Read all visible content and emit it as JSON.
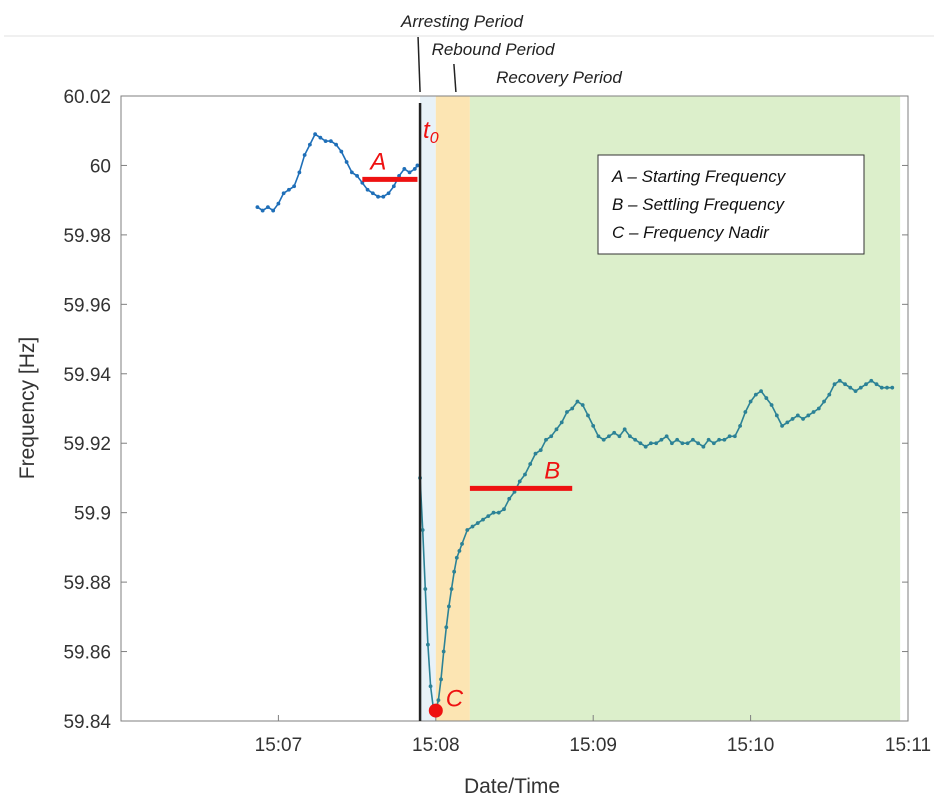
{
  "chart_data": {
    "type": "line",
    "title": "",
    "xlabel": "Date/Time",
    "ylabel": "Frequency [Hz]",
    "ylim": [
      59.84,
      60.02
    ],
    "xlim": [
      "15:06:00",
      "15:11:00"
    ],
    "x_ticks": [
      "15:07",
      "15:08",
      "15:09",
      "15:10",
      "15:11"
    ],
    "y_ticks": [
      "59.84",
      "59.86",
      "59.88",
      "59.9",
      "59.92",
      "59.94",
      "59.96",
      "59.98",
      "60",
      "60.02"
    ],
    "grid": false,
    "periods": [
      {
        "name": "Arresting Period",
        "start": "15:07:54",
        "end": "15:08:00",
        "color": "#e8f2f8"
      },
      {
        "name": "Rebound Period",
        "start": "15:08:00",
        "end": "15:08:13",
        "color": "#fce5b3"
      },
      {
        "name": "Recovery Period",
        "start": "15:08:13",
        "end": "15:10:57",
        "color": "#dcefcb"
      }
    ],
    "event_time": {
      "label": "t",
      "subscript": "0",
      "x": "15:07:54"
    },
    "markers": [
      {
        "label": "A",
        "kind": "segment",
        "x_start": "15:07:32",
        "x_end": "15:07:53",
        "y": 59.996
      },
      {
        "label": "B",
        "kind": "segment",
        "x_start": "15:08:13",
        "x_end": "15:08:52",
        "y": 59.907
      },
      {
        "label": "C",
        "kind": "point",
        "x": "15:08:00",
        "y": 59.843
      }
    ],
    "legend_entries": [
      "A – Starting Frequency",
      "B – Settling Frequency",
      "C – Frequency Nadir"
    ],
    "legend_position": "top-right",
    "colors": {
      "series_before": "#1f6fb8",
      "series_after": "#2c8296",
      "marker": "#ee1111",
      "event_line": "#222222"
    },
    "series": [
      {
        "segment": "before",
        "x": [
          "15:06:52",
          "15:06:54",
          "15:06:56",
          "15:06:58",
          "15:07:00",
          "15:07:02",
          "15:07:04",
          "15:07:06",
          "15:07:08",
          "15:07:10",
          "15:07:12",
          "15:07:14",
          "15:07:16",
          "15:07:18",
          "15:07:20",
          "15:07:22",
          "15:07:24",
          "15:07:26",
          "15:07:28",
          "15:07:30",
          "15:07:32",
          "15:07:34",
          "15:07:36",
          "15:07:38",
          "15:07:40",
          "15:07:42",
          "15:07:44",
          "15:07:46",
          "15:07:48",
          "15:07:50",
          "15:07:52",
          "15:07:53"
        ],
        "values": [
          59.988,
          59.987,
          59.988,
          59.987,
          59.989,
          59.992,
          59.993,
          59.994,
          59.998,
          60.003,
          60.006,
          60.009,
          60.008,
          60.007,
          60.007,
          60.006,
          60.004,
          60.001,
          59.998,
          59.997,
          59.995,
          59.993,
          59.992,
          59.991,
          59.991,
          59.992,
          59.994,
          59.997,
          59.999,
          59.998,
          59.999,
          60.0
        ]
      },
      {
        "segment": "after",
        "x": [
          "15:07:54",
          "15:07:55",
          "15:07:56",
          "15:07:57",
          "15:07:58",
          "15:07:59",
          "15:08:00",
          "15:08:01",
          "15:08:02",
          "15:08:03",
          "15:08:04",
          "15:08:05",
          "15:08:06",
          "15:08:07",
          "15:08:08",
          "15:08:09",
          "15:08:10",
          "15:08:12",
          "15:08:14",
          "15:08:16",
          "15:08:18",
          "15:08:20",
          "15:08:22",
          "15:08:24",
          "15:08:26",
          "15:08:28",
          "15:08:30",
          "15:08:32",
          "15:08:34",
          "15:08:36",
          "15:08:38",
          "15:08:40",
          "15:08:42",
          "15:08:44",
          "15:08:46",
          "15:08:48",
          "15:08:50",
          "15:08:52",
          "15:08:54",
          "15:08:56",
          "15:08:58",
          "15:09:00",
          "15:09:02",
          "15:09:04",
          "15:09:06",
          "15:09:08",
          "15:09:10",
          "15:09:12",
          "15:09:14",
          "15:09:16",
          "15:09:18",
          "15:09:20",
          "15:09:22",
          "15:09:24",
          "15:09:26",
          "15:09:28",
          "15:09:30",
          "15:09:32",
          "15:09:34",
          "15:09:36",
          "15:09:38",
          "15:09:40",
          "15:09:42",
          "15:09:44",
          "15:09:46",
          "15:09:48",
          "15:09:50",
          "15:09:52",
          "15:09:54",
          "15:09:56",
          "15:09:58",
          "15:10:00",
          "15:10:02",
          "15:10:04",
          "15:10:06",
          "15:10:08",
          "15:10:10",
          "15:10:12",
          "15:10:14",
          "15:10:16",
          "15:10:18",
          "15:10:20",
          "15:10:22",
          "15:10:24",
          "15:10:26",
          "15:10:28",
          "15:10:30",
          "15:10:32",
          "15:10:34",
          "15:10:36",
          "15:10:38",
          "15:10:40",
          "15:10:42",
          "15:10:44",
          "15:10:46",
          "15:10:48",
          "15:10:50",
          "15:10:52",
          "15:10:54"
        ],
        "values": [
          59.91,
          59.895,
          59.878,
          59.862,
          59.85,
          59.844,
          59.843,
          59.846,
          59.852,
          59.86,
          59.867,
          59.873,
          59.878,
          59.883,
          59.887,
          59.889,
          59.891,
          59.895,
          59.896,
          59.897,
          59.898,
          59.899,
          59.9,
          59.9,
          59.901,
          59.904,
          59.906,
          59.909,
          59.911,
          59.914,
          59.917,
          59.918,
          59.921,
          59.922,
          59.924,
          59.926,
          59.929,
          59.93,
          59.932,
          59.931,
          59.928,
          59.925,
          59.922,
          59.921,
          59.922,
          59.923,
          59.922,
          59.924,
          59.922,
          59.921,
          59.92,
          59.919,
          59.92,
          59.92,
          59.921,
          59.922,
          59.92,
          59.921,
          59.92,
          59.92,
          59.921,
          59.92,
          59.919,
          59.921,
          59.92,
          59.921,
          59.921,
          59.922,
          59.922,
          59.925,
          59.929,
          59.932,
          59.934,
          59.935,
          59.933,
          59.931,
          59.928,
          59.925,
          59.926,
          59.927,
          59.928,
          59.927,
          59.928,
          59.929,
          59.93,
          59.932,
          59.934,
          59.937,
          59.938,
          59.937,
          59.936,
          59.935,
          59.936,
          59.937,
          59.938,
          59.937,
          59.936,
          59.936,
          59.936
        ]
      }
    ]
  }
}
